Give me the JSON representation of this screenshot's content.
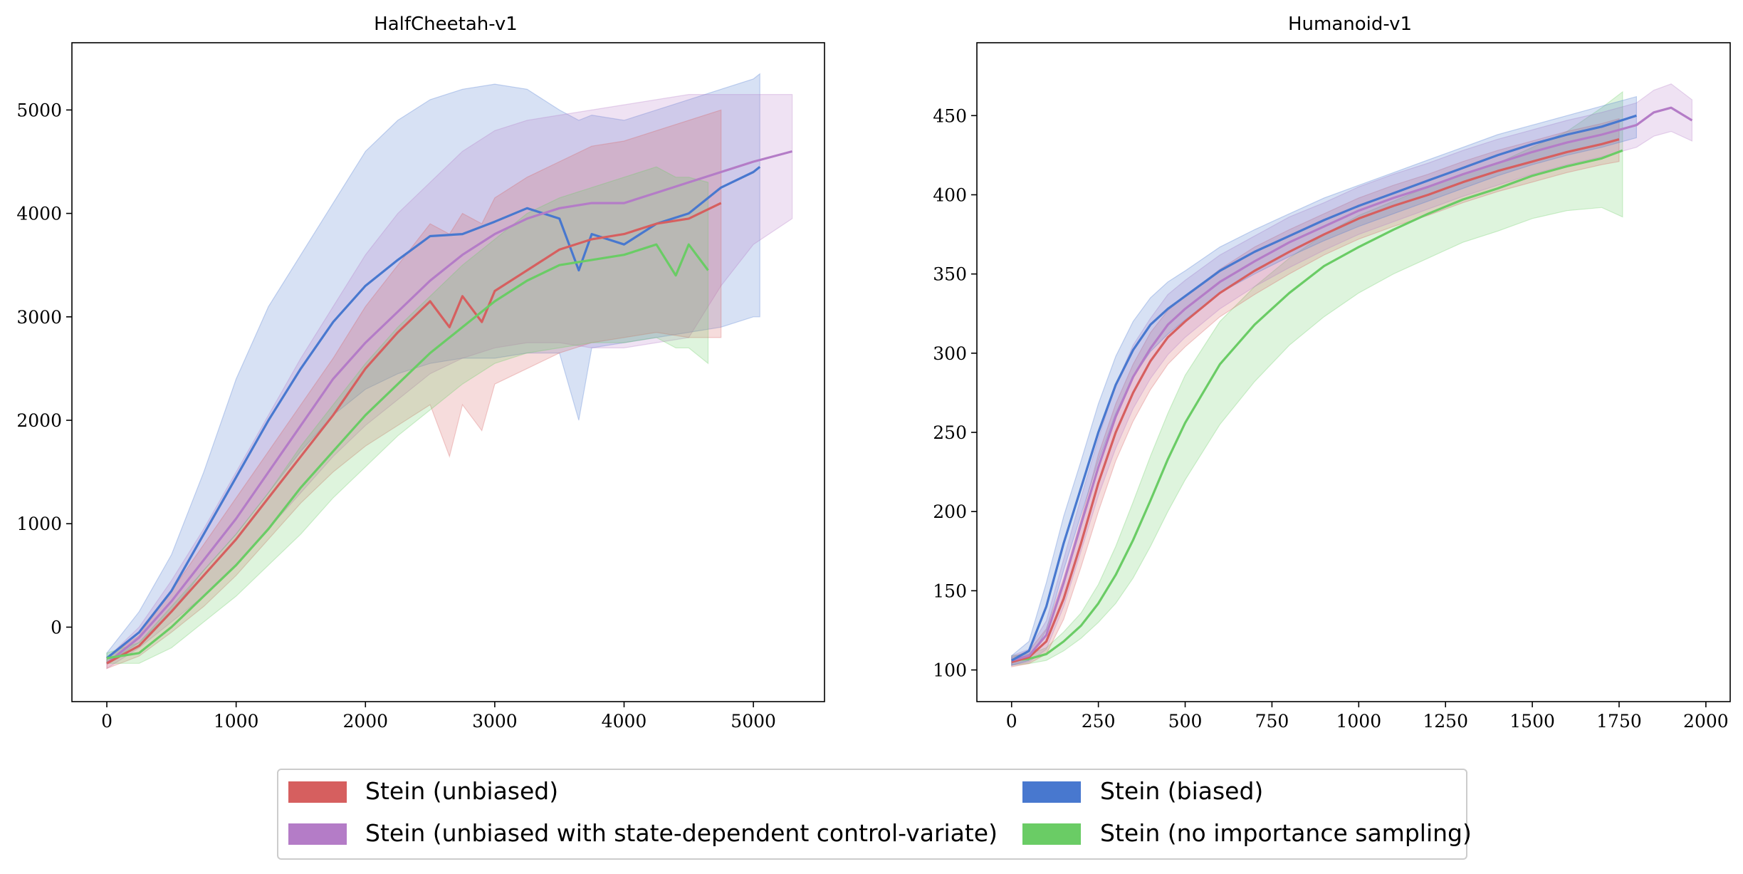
{
  "colors": {
    "unbiased": "#d65f5f",
    "biased": "#4878cf",
    "state_cv": "#b47cc7",
    "no_is": "#6acc65"
  },
  "legend": [
    {
      "key": "unbiased",
      "label": "Stein (unbiased)"
    },
    {
      "key": "state_cv",
      "label": "Stein (unbiased with state-dependent control-variate)"
    },
    {
      "key": "biased",
      "label": "Stein (biased)"
    },
    {
      "key": "no_is",
      "label": "Stein (no importance sampling)"
    }
  ],
  "chart_data": [
    {
      "type": "line",
      "title": "HalfCheetah-v1",
      "xlabel": "",
      "ylabel": "",
      "xlim": [
        -270,
        5550
      ],
      "ylim": [
        -720,
        5650
      ],
      "xticks": [
        0,
        1000,
        2000,
        3000,
        4000,
        5000
      ],
      "yticks": [
        0,
        1000,
        2000,
        3000,
        4000,
        5000
      ],
      "grid": false,
      "series": [
        {
          "key": "biased",
          "name": "Stein (biased)",
          "x": [
            0,
            250,
            500,
            750,
            1000,
            1250,
            1500,
            1750,
            2000,
            2250,
            2500,
            2750,
            3000,
            3250,
            3500,
            3650,
            3750,
            4000,
            4250,
            4500,
            4750,
            5000,
            5050
          ],
          "y": [
            -300,
            -50,
            350,
            900,
            1450,
            2000,
            2500,
            2950,
            3300,
            3550,
            3780,
            3800,
            3920,
            4050,
            3950,
            3450,
            3800,
            3700,
            3900,
            4000,
            4250,
            4400,
            4450
          ],
          "lower": [
            -350,
            -150,
            150,
            550,
            900,
            1300,
            1700,
            2050,
            2300,
            2450,
            2550,
            2600,
            2600,
            2650,
            2650,
            2000,
            2700,
            2750,
            2800,
            2850,
            2900,
            3000,
            3000
          ],
          "upper": [
            -250,
            150,
            700,
            1500,
            2400,
            3100,
            3600,
            4100,
            4600,
            4900,
            5100,
            5200,
            5250,
            5200,
            5000,
            4900,
            4950,
            4900,
            5000,
            5100,
            5200,
            5300,
            5350
          ]
        },
        {
          "key": "state_cv",
          "name": "Stein (unbiased with state-dependent control-variate)",
          "x": [
            0,
            250,
            500,
            750,
            1000,
            1250,
            1500,
            1750,
            2000,
            2250,
            2500,
            2750,
            3000,
            3250,
            3500,
            3750,
            4000,
            4250,
            4500,
            4750,
            5000,
            5300
          ],
          "y": [
            -350,
            -100,
            250,
            650,
            1050,
            1500,
            1950,
            2400,
            2750,
            3050,
            3350,
            3600,
            3800,
            3950,
            4050,
            4100,
            4100,
            4200,
            4300,
            4400,
            4500,
            4600
          ],
          "lower": [
            -400,
            -200,
            50,
            300,
            600,
            950,
            1300,
            1650,
            1950,
            2200,
            2450,
            2600,
            2700,
            2750,
            2750,
            2700,
            2700,
            2750,
            2800,
            3300,
            3700,
            3950
          ],
          "upper": [
            -300,
            0,
            450,
            950,
            1500,
            2050,
            2600,
            3100,
            3600,
            4000,
            4300,
            4600,
            4800,
            4900,
            4950,
            5000,
            5050,
            5100,
            5150,
            5150,
            5150,
            5150
          ]
        },
        {
          "key": "unbiased",
          "name": "Stein (unbiased)",
          "x": [
            0,
            250,
            500,
            750,
            1000,
            1250,
            1500,
            1750,
            2000,
            2250,
            2500,
            2650,
            2750,
            2900,
            3000,
            3250,
            3500,
            3750,
            4000,
            4250,
            4500,
            4750
          ],
          "y": [
            -350,
            -180,
            150,
            500,
            850,
            1250,
            1650,
            2050,
            2500,
            2850,
            3150,
            2900,
            3200,
            2950,
            3250,
            3450,
            3650,
            3750,
            3800,
            3900,
            3950,
            4100
          ],
          "lower": [
            -400,
            -280,
            -50,
            200,
            500,
            850,
            1200,
            1500,
            1750,
            1950,
            2150,
            1650,
            2150,
            1900,
            2350,
            2500,
            2650,
            2750,
            2800,
            2850,
            2800,
            2800
          ],
          "upper": [
            -300,
            -80,
            350,
            800,
            1250,
            1700,
            2150,
            2600,
            3100,
            3500,
            3900,
            3800,
            4000,
            3900,
            4150,
            4350,
            4500,
            4650,
            4700,
            4800,
            4900,
            5000
          ]
        },
        {
          "key": "no_is",
          "name": "Stein (no importance sampling)",
          "x": [
            0,
            250,
            500,
            750,
            1000,
            1250,
            1500,
            1750,
            2000,
            2250,
            2500,
            2750,
            3000,
            3250,
            3500,
            3750,
            4000,
            4250,
            4400,
            4500,
            4650
          ],
          "y": [
            -300,
            -250,
            0,
            300,
            600,
            950,
            1350,
            1700,
            2050,
            2350,
            2650,
            2900,
            3150,
            3350,
            3500,
            3550,
            3600,
            3700,
            3400,
            3700,
            3450
          ],
          "lower": [
            -350,
            -350,
            -200,
            50,
            300,
            600,
            900,
            1250,
            1550,
            1850,
            2100,
            2350,
            2550,
            2650,
            2700,
            2750,
            2750,
            2800,
            2700,
            2700,
            2550
          ],
          "upper": [
            -250,
            -150,
            200,
            550,
            900,
            1300,
            1750,
            2150,
            2550,
            2900,
            3200,
            3500,
            3750,
            4000,
            4150,
            4250,
            4350,
            4450,
            4350,
            4350,
            4300
          ]
        }
      ]
    },
    {
      "type": "line",
      "title": "Humanoid-v1",
      "xlabel": "",
      "ylabel": "",
      "xlim": [
        -100,
        2070
      ],
      "ylim": [
        80,
        496
      ],
      "xticks": [
        0,
        250,
        500,
        750,
        1000,
        1250,
        1500,
        1750,
        2000
      ],
      "yticks": [
        100,
        150,
        200,
        250,
        300,
        350,
        400,
        450
      ],
      "grid": false,
      "series": [
        {
          "key": "no_is",
          "name": "Stein (no importance sampling)",
          "x": [
            0,
            50,
            100,
            150,
            200,
            250,
            300,
            350,
            400,
            450,
            500,
            600,
            700,
            800,
            900,
            1000,
            1100,
            1200,
            1300,
            1400,
            1500,
            1600,
            1700,
            1760
          ],
          "y": [
            106,
            107,
            110,
            118,
            128,
            142,
            160,
            182,
            207,
            233,
            256,
            293,
            318,
            338,
            355,
            367,
            378,
            388,
            397,
            404,
            412,
            418,
            423,
            428
          ],
          "lower": [
            103,
            104,
            106,
            112,
            120,
            130,
            142,
            158,
            178,
            200,
            220,
            255,
            282,
            305,
            323,
            338,
            350,
            360,
            370,
            377,
            385,
            390,
            392,
            386
          ],
          "upper": [
            109,
            110,
            114,
            124,
            136,
            154,
            178,
            206,
            235,
            262,
            286,
            320,
            342,
            360,
            375,
            387,
            396,
            405,
            413,
            420,
            430,
            440,
            455,
            465
          ]
        },
        {
          "key": "unbiased",
          "name": "Stein (unbiased)",
          "x": [
            0,
            50,
            100,
            150,
            200,
            250,
            300,
            350,
            400,
            450,
            500,
            600,
            700,
            800,
            900,
            1000,
            1100,
            1200,
            1300,
            1400,
            1500,
            1600,
            1700,
            1750
          ],
          "y": [
            105,
            108,
            118,
            145,
            180,
            218,
            250,
            275,
            295,
            310,
            320,
            338,
            352,
            364,
            375,
            385,
            393,
            400,
            408,
            415,
            421,
            427,
            432,
            435
          ],
          "lower": [
            102,
            104,
            110,
            132,
            165,
            200,
            232,
            257,
            277,
            293,
            304,
            323,
            337,
            350,
            362,
            372,
            380,
            387,
            395,
            402,
            408,
            414,
            419,
            421
          ],
          "upper": [
            108,
            112,
            126,
            158,
            195,
            236,
            268,
            293,
            313,
            327,
            336,
            353,
            367,
            378,
            388,
            398,
            406,
            413,
            421,
            428,
            434,
            440,
            445,
            448
          ]
        },
        {
          "key": "state_cv",
          "name": "Stein (unbiased with state-dependent control-variate)",
          "x": [
            0,
            50,
            100,
            150,
            200,
            250,
            300,
            350,
            400,
            450,
            500,
            600,
            700,
            800,
            900,
            1000,
            1100,
            1200,
            1300,
            1400,
            1500,
            1600,
            1700,
            1800,
            1850,
            1900,
            1960
          ],
          "y": [
            106,
            109,
            122,
            155,
            192,
            228,
            260,
            285,
            303,
            318,
            328,
            345,
            358,
            370,
            380,
            390,
            398,
            405,
            413,
            420,
            427,
            433,
            438,
            444,
            452,
            455,
            447
          ],
          "lower": [
            103,
            105,
            113,
            140,
            175,
            210,
            240,
            265,
            284,
            299,
            310,
            328,
            342,
            354,
            365,
            375,
            383,
            391,
            399,
            406,
            413,
            419,
            424,
            430,
            437,
            440,
            434
          ],
          "upper": [
            109,
            113,
            131,
            170,
            209,
            246,
            280,
            305,
            322,
            337,
            346,
            362,
            374,
            386,
            395,
            405,
            413,
            420,
            428,
            435,
            441,
            447,
            452,
            458,
            466,
            470,
            460
          ]
        },
        {
          "key": "biased",
          "name": "Stein (biased)",
          "x": [
            0,
            50,
            100,
            150,
            200,
            250,
            300,
            350,
            400,
            450,
            500,
            600,
            700,
            800,
            900,
            1000,
            1100,
            1200,
            1300,
            1400,
            1500,
            1600,
            1700,
            1800
          ],
          "y": [
            106,
            112,
            140,
            180,
            215,
            250,
            280,
            302,
            318,
            328,
            336,
            352,
            364,
            374,
            384,
            393,
            401,
            409,
            417,
            425,
            432,
            438,
            443,
            450
          ],
          "lower": [
            103,
            106,
            125,
            163,
            198,
            232,
            262,
            285,
            301,
            312,
            321,
            338,
            350,
            361,
            371,
            380,
            388,
            396,
            404,
            412,
            419,
            425,
            430,
            436
          ],
          "upper": [
            109,
            118,
            155,
            197,
            232,
            268,
            298,
            320,
            335,
            345,
            352,
            367,
            378,
            388,
            398,
            406,
            414,
            422,
            430,
            438,
            444,
            450,
            456,
            462
          ]
        }
      ]
    }
  ]
}
